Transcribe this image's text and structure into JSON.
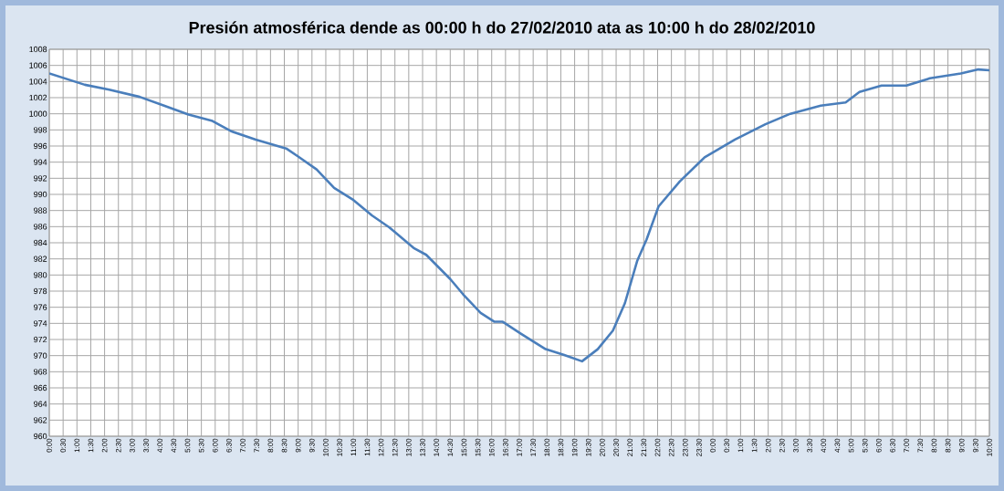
{
  "chart_data": {
    "type": "line",
    "title": "Presión atmosférica dende as 00:00 h do 27/02/2010 ata as 10:00 h do 28/02/2010",
    "x": [
      "2010-02-27T00:00",
      "2010-02-27T01:17",
      "2010-02-27T02:10",
      "2010-02-27T03:16",
      "2010-02-27T04:09",
      "2010-02-27T05:02",
      "2010-02-27T05:54",
      "2010-02-27T06:36",
      "2010-02-27T07:28",
      "2010-02-27T08:34",
      "2010-02-27T09:00",
      "2010-02-27T09:40",
      "2010-02-27T10:18",
      "2010-02-27T11:00",
      "2010-02-27T11:40",
      "2010-02-27T12:18",
      "2010-02-27T13:12",
      "2010-02-27T13:38",
      "2010-02-27T14:30",
      "2010-02-27T14:58",
      "2010-02-27T15:36",
      "2010-02-27T16:06",
      "2010-02-27T16:24",
      "2010-02-27T17:04",
      "2010-02-27T17:57",
      "2010-02-27T18:36",
      "2010-02-27T19:16",
      "2010-02-27T19:50",
      "2010-02-27T20:23",
      "2010-02-27T20:49",
      "2010-02-27T21:16",
      "2010-02-27T21:36",
      "2010-02-27T22:02",
      "2010-02-27T22:48",
      "2010-02-27T23:42",
      "2010-02-28T00:48",
      "2010-02-28T01:54",
      "2010-02-28T02:48",
      "2010-02-28T03:54",
      "2010-02-28T04:48",
      "2010-02-28T05:18",
      "2010-02-28T06:06",
      "2010-02-28T07:00",
      "2010-02-28T07:51",
      "2010-02-28T08:58",
      "2010-02-28T09:36",
      "2010-02-28T10:00"
    ],
    "series": [
      {
        "color": "#4a7ebb",
        "values": [
          1005.0,
          1003.6,
          1003.0,
          1002.1,
          1001.0,
          999.9,
          999.1,
          997.8,
          996.8,
          995.7,
          994.7,
          993.1,
          990.8,
          989.3,
          987.4,
          985.9,
          983.3,
          982.5,
          979.5,
          977.6,
          975.3,
          974.2,
          974.2,
          972.7,
          970.8,
          970.1,
          969.3,
          970.8,
          973.1,
          976.5,
          981.8,
          984.4,
          988.5,
          991.6,
          994.6,
          996.8,
          998.7,
          1000.0,
          1001.0,
          1001.4,
          1002.7,
          1003.5,
          1003.5,
          1004.4,
          1005.0,
          1005.5,
          1005.4
        ]
      }
    ],
    "xlim": [
      "2010-02-27T00:00",
      "2010-02-28T10:00"
    ],
    "ylim": [
      960,
      1008
    ],
    "yticks": [
      960,
      962,
      964,
      966,
      968,
      970,
      972,
      974,
      976,
      978,
      980,
      982,
      984,
      986,
      988,
      990,
      992,
      994,
      996,
      998,
      1000,
      1002,
      1004,
      1006,
      1008
    ],
    "xticks": [
      {
        "value": "2010-02-27T00:00",
        "label": "0:00"
      },
      {
        "value": "2010-02-27T00:30",
        "label": "0:30"
      },
      {
        "value": "2010-02-27T01:00",
        "label": "1:00"
      },
      {
        "value": "2010-02-27T01:30",
        "label": "1:30"
      },
      {
        "value": "2010-02-27T02:00",
        "label": "2:00"
      },
      {
        "value": "2010-02-27T02:30",
        "label": "2:30"
      },
      {
        "value": "2010-02-27T03:00",
        "label": "3:00"
      },
      {
        "value": "2010-02-27T03:30",
        "label": "3:30"
      },
      {
        "value": "2010-02-27T04:00",
        "label": "4:00"
      },
      {
        "value": "2010-02-27T04:30",
        "label": "4:30"
      },
      {
        "value": "2010-02-27T05:00",
        "label": "5:00"
      },
      {
        "value": "2010-02-27T05:30",
        "label": "5:30"
      },
      {
        "value": "2010-02-27T06:00",
        "label": "6:00"
      },
      {
        "value": "2010-02-27T06:30",
        "label": "6:30"
      },
      {
        "value": "2010-02-27T07:00",
        "label": "7:00"
      },
      {
        "value": "2010-02-27T07:30",
        "label": "7:30"
      },
      {
        "value": "2010-02-27T08:00",
        "label": "8:00"
      },
      {
        "value": "2010-02-27T08:30",
        "label": "8:30"
      },
      {
        "value": "2010-02-27T09:00",
        "label": "9:00"
      },
      {
        "value": "2010-02-27T09:30",
        "label": "9:30"
      },
      {
        "value": "2010-02-27T10:00",
        "label": "10:00"
      },
      {
        "value": "2010-02-27T10:30",
        "label": "10:30"
      },
      {
        "value": "2010-02-27T11:00",
        "label": "11:00"
      },
      {
        "value": "2010-02-27T11:30",
        "label": "11:30"
      },
      {
        "value": "2010-02-27T12:00",
        "label": "12:00"
      },
      {
        "value": "2010-02-27T12:30",
        "label": "12:30"
      },
      {
        "value": "2010-02-27T13:00",
        "label": "13:00"
      },
      {
        "value": "2010-02-27T13:30",
        "label": "13:30"
      },
      {
        "value": "2010-02-27T14:00",
        "label": "14:00"
      },
      {
        "value": "2010-02-27T14:30",
        "label": "14:30"
      },
      {
        "value": "2010-02-27T15:00",
        "label": "15:00"
      },
      {
        "value": "2010-02-27T15:30",
        "label": "15:30"
      },
      {
        "value": "2010-02-27T16:00",
        "label": "16:00"
      },
      {
        "value": "2010-02-27T16:30",
        "label": "16:30"
      },
      {
        "value": "2010-02-27T17:00",
        "label": "17:00"
      },
      {
        "value": "2010-02-27T17:30",
        "label": "17:30"
      },
      {
        "value": "2010-02-27T18:00",
        "label": "18:00"
      },
      {
        "value": "2010-02-27T18:30",
        "label": "18:30"
      },
      {
        "value": "2010-02-27T19:00",
        "label": "19:00"
      },
      {
        "value": "2010-02-27T19:30",
        "label": "19:30"
      },
      {
        "value": "2010-02-27T20:00",
        "label": "20:00"
      },
      {
        "value": "2010-02-27T20:30",
        "label": "20:30"
      },
      {
        "value": "2010-02-27T21:00",
        "label": "21:00"
      },
      {
        "value": "2010-02-27T21:30",
        "label": "21:30"
      },
      {
        "value": "2010-02-27T22:00",
        "label": "22:00"
      },
      {
        "value": "2010-02-27T22:30",
        "label": "22:30"
      },
      {
        "value": "2010-02-27T23:00",
        "label": "23:00"
      },
      {
        "value": "2010-02-27T23:30",
        "label": "23:30"
      },
      {
        "value": "2010-02-28T00:00",
        "label": "0:00"
      },
      {
        "value": "2010-02-28T00:30",
        "label": "0:30"
      },
      {
        "value": "2010-02-28T01:00",
        "label": "1:00"
      },
      {
        "value": "2010-02-28T01:30",
        "label": "1:30"
      },
      {
        "value": "2010-02-28T02:00",
        "label": "2:00"
      },
      {
        "value": "2010-02-28T02:30",
        "label": "2:30"
      },
      {
        "value": "2010-02-28T03:00",
        "label": "3:00"
      },
      {
        "value": "2010-02-28T03:30",
        "label": "3:30"
      },
      {
        "value": "2010-02-28T04:00",
        "label": "4:00"
      },
      {
        "value": "2010-02-28T04:30",
        "label": "4:30"
      },
      {
        "value": "2010-02-28T05:00",
        "label": "5:00"
      },
      {
        "value": "2010-02-28T05:30",
        "label": "5:30"
      },
      {
        "value": "2010-02-28T06:00",
        "label": "6:00"
      },
      {
        "value": "2010-02-28T06:30",
        "label": "6:30"
      },
      {
        "value": "2010-02-28T07:00",
        "label": "7:00"
      },
      {
        "value": "2010-02-28T07:30",
        "label": "7:30"
      },
      {
        "value": "2010-02-28T08:00",
        "label": "8:00"
      },
      {
        "value": "2010-02-28T08:30",
        "label": "8:30"
      },
      {
        "value": "2010-02-28T09:00",
        "label": "9:00"
      },
      {
        "value": "2010-02-28T09:30",
        "label": "9:30"
      },
      {
        "value": "2010-02-28T10:00",
        "label": "10:00"
      }
    ],
    "grid": true,
    "marker": "none",
    "line_style": "solid"
  }
}
